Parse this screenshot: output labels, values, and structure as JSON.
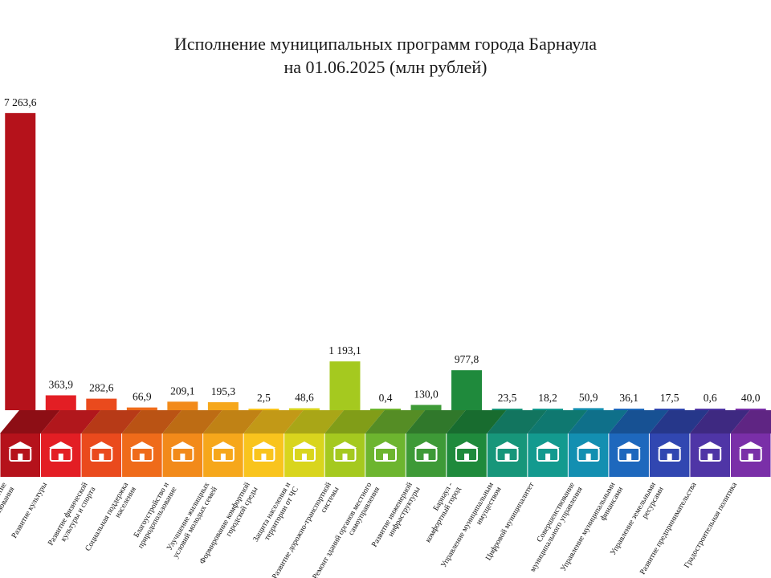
{
  "title": {
    "line1": "Исполнение муниципальных программ города Барнаула",
    "line2": "на 01.06.2025 (млн рублей)"
  },
  "chart_data": {
    "type": "bar",
    "unit": "млн рублей",
    "categories": [
      [
        "Развитие",
        "образования"
      ],
      [
        "Развитие культуры"
      ],
      [
        "Развитие физической",
        "культуры и спорта"
      ],
      [
        "Социальная поддержка",
        "населения"
      ],
      [
        "Благоустройство и",
        "природопользование"
      ],
      [
        "Улучшение жилищных",
        "условий молодых семей"
      ],
      [
        "Формирование комфортной",
        "городской среды"
      ],
      [
        "Защита населения и",
        "территории от ЧС"
      ],
      [
        "Развитие дорожно-транспортной",
        "системы"
      ],
      [
        "Ремонт зданий органов местного",
        "самоуправления"
      ],
      [
        "Развитие инженерной",
        "инфраструктуры"
      ],
      [
        "Барнаул -",
        "комфортный город"
      ],
      [
        "Управление муниципальным",
        "имуществом"
      ],
      [
        "Цифровой муниципалитет"
      ],
      [
        "Совершенствование",
        "муниципального управления"
      ],
      [
        "Управление муниципальными",
        "финансами"
      ],
      [
        "Управление земельными",
        "ресурсами"
      ],
      [
        "Развитие предпринимательства"
      ],
      [
        "Градостроительная политика"
      ]
    ],
    "values": [
      7263.6,
      363.9,
      282.6,
      66.9,
      209.1,
      195.3,
      2.5,
      48.6,
      1193.1,
      0.4,
      130.0,
      977.8,
      23.5,
      18.2,
      50.9,
      36.1,
      17.5,
      0.6,
      40.0
    ],
    "value_labels": [
      "7 263,6",
      "363,9",
      "282,6",
      "66,9",
      "209,1",
      "195,3",
      "2,5",
      "48,6",
      "1 193,1",
      "0,4",
      "130,0",
      "977,8",
      "23,5",
      "18,2",
      "50,9",
      "36,1",
      "17,5",
      "0,6",
      "40,0"
    ],
    "colors": [
      "#b5121b",
      "#e31e24",
      "#ea4a1d",
      "#ef6b1a",
      "#f28a1a",
      "#f6a71b",
      "#f9c41d",
      "#d9d51d",
      "#a5c91f",
      "#6db52f",
      "#3e9a37",
      "#1f8a3c",
      "#17967a",
      "#139a8f",
      "#138fb1",
      "#1e68bd",
      "#3147b1",
      "#4f35a6",
      "#7a2fa8"
    ],
    "icons": [
      "graduation-cap-icon",
      "column-icon",
      "athlete-icon",
      "family-icon",
      "tree-bench-icon",
      "house-family-icon",
      "city-buildings-icon",
      "fire-extinguisher-icon",
      "road-icon",
      "municipal-building-icon",
      "engineering-icon",
      "city-icon",
      "house-owner-icon",
      "computer-icon",
      "document-check-icon",
      "coins-icon",
      "land-board-icon",
      "handshake-icon",
      "crane-icon"
    ],
    "ylim": [
      0,
      7300
    ],
    "grid": false,
    "legend": "none"
  }
}
